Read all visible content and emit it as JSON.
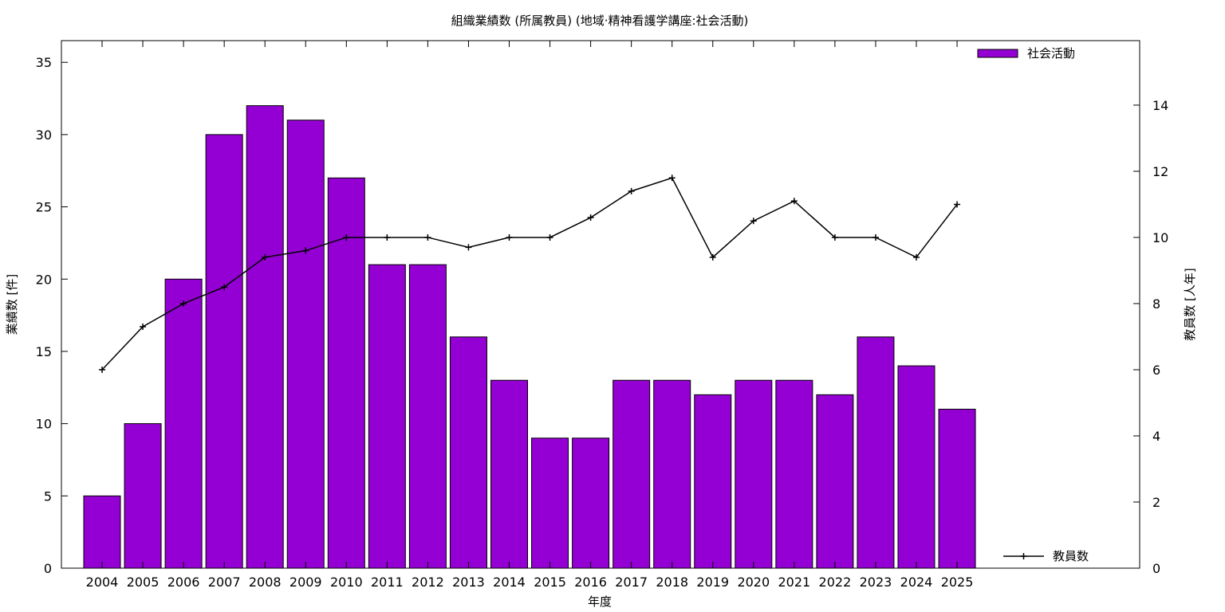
{
  "chart_data": {
    "type": "bar",
    "title": "組織業績数 (所属教員) (地域·精神看護学講座:社会活動)",
    "xlabel": "年度",
    "ylabel": "業績数 [件]",
    "y2label": "教員数 [人年]",
    "categories": [
      "2004",
      "2005",
      "2006",
      "2007",
      "2008",
      "2009",
      "2010",
      "2011",
      "2012",
      "2013",
      "2014",
      "2015",
      "2016",
      "2017",
      "2018",
      "2019",
      "2020",
      "2021",
      "2022",
      "2023",
      "2024",
      "2025"
    ],
    "series": [
      {
        "name": "社会活動",
        "type": "bar",
        "axis": "left",
        "color": "#9400d3",
        "values": [
          5,
          10,
          20,
          30,
          32,
          31,
          27,
          21,
          21,
          16,
          13,
          9,
          9,
          13,
          13,
          12,
          13,
          13,
          12,
          16,
          14,
          11
        ]
      },
      {
        "name": "教員数",
        "type": "line",
        "axis": "right",
        "color": "#000000",
        "values": [
          6.0,
          7.3,
          8.0,
          8.5,
          9.4,
          9.6,
          10.0,
          10.0,
          10.0,
          9.7,
          10.0,
          10.0,
          10.6,
          11.4,
          11.8,
          9.4,
          10.5,
          11.1,
          10.0,
          10.0,
          9.4,
          11.0
        ]
      }
    ],
    "ylim": [
      0,
      36.5
    ],
    "yticks": [
      0,
      5,
      10,
      15,
      20,
      25,
      30,
      35
    ],
    "y2lim": [
      0,
      15.95
    ],
    "y2ticks": [
      0,
      2,
      4,
      6,
      8,
      10,
      12,
      14
    ],
    "legend": {
      "bar_position": "top-right",
      "line_position": "bottom-right"
    },
    "grid": false
  }
}
